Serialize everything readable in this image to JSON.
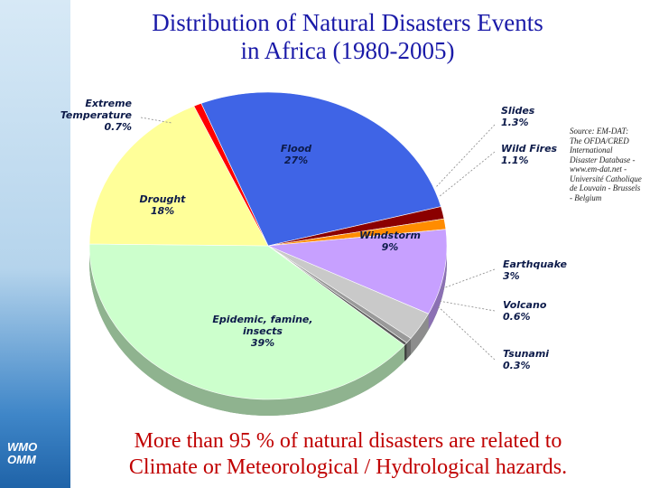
{
  "title_lines": [
    "Distribution of Natural Disasters Events",
    "in Africa (1980-2005)"
  ],
  "logo_lines": [
    "WMO",
    "OMM"
  ],
  "source_note": "Source: EM-DAT: The OFDA/CRED International Disaster Database - www.em-dat.net - Université Catholique de Louvain - Brussels - Belgium",
  "conclusion_lines": [
    "More than 95 % of natural disasters are related to",
    "Climate or Meteorological / Hydrological hazards."
  ],
  "colors": {
    "title": "#1a1aa8",
    "conclusion": "#c00000",
    "sidebar": "#b5d4ec"
  },
  "chart_data": {
    "type": "pie",
    "start_at": "left-of-top, clockwise",
    "slices": [
      {
        "name": "Flood",
        "label": "Flood",
        "value_label": "27%",
        "value": 27,
        "color": "#3f64e6"
      },
      {
        "name": "Slides",
        "label": "Slides",
        "value_label": "1.3%",
        "value": 1.3,
        "color": "#8b0000"
      },
      {
        "name": "Wild Fires",
        "label": "Wild Fires",
        "value_label": "1.1%",
        "value": 1.1,
        "color": "#ff8c00"
      },
      {
        "name": "Windstorm",
        "label": "Windstorm",
        "value_label": "9%",
        "value": 9,
        "color": "#c7a0ff"
      },
      {
        "name": "Earthquake",
        "label": "Earthquake",
        "value_label": "3%",
        "value": 3,
        "color": "#c9c9c9"
      },
      {
        "name": "Volcano",
        "label": "Volcano",
        "value_label": "0.6%",
        "value": 0.6,
        "color": "#9a9a9a"
      },
      {
        "name": "Tsunami",
        "label": "Tsunami",
        "value_label": "0.3%",
        "value": 0.3,
        "color": "#5a5a5a"
      },
      {
        "name": "Epidemic, famine, insects",
        "label": "Epidemic, famine, insects",
        "value_label": "39%",
        "value": 39,
        "color": "#ccffcc"
      },
      {
        "name": "Drought",
        "label": "Drought",
        "value_label": "18%",
        "value": 18,
        "color": "#ffff99"
      },
      {
        "name": "Extreme Temperature",
        "label": "Extreme Temperature",
        "value_label": "0.7%",
        "value": 0.7,
        "color": "#ff0000"
      }
    ]
  }
}
